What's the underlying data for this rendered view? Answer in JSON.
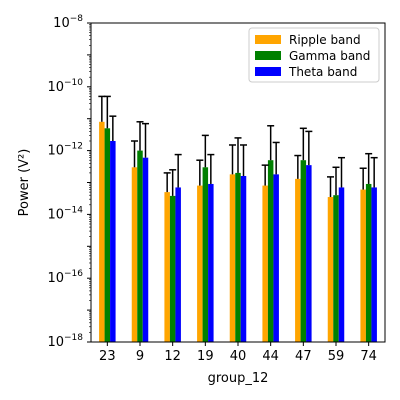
{
  "chart_data": {
    "type": "bar",
    "title": "",
    "xlabel": "group_12",
    "ylabel": "Power (V²)",
    "yscale": "log",
    "ylim": [
      1e-18,
      1e-08
    ],
    "grid": false,
    "legend_position": "top-right",
    "categories": [
      "23",
      "9",
      "12",
      "19",
      "40",
      "44",
      "47",
      "59",
      "74"
    ],
    "series": [
      {
        "name": "Ripple band",
        "color": "#ffa500",
        "values": [
          8e-12,
          3e-13,
          5e-14,
          8e-14,
          1.8e-13,
          8e-14,
          1.3e-13,
          3.5e-14,
          6e-14
        ],
        "error_upper": [
          5e-11,
          2e-12,
          2e-13,
          5e-13,
          1.5e-12,
          3.5e-13,
          7e-13,
          1.5e-13,
          2.8e-13
        ]
      },
      {
        "name": "Gamma band",
        "color": "#008000",
        "values": [
          5e-12,
          1e-12,
          3.8e-14,
          3e-13,
          2e-13,
          5e-13,
          5e-13,
          4e-14,
          9e-14
        ],
        "error_upper": [
          5e-11,
          8e-12,
          2.5e-13,
          3e-12,
          2.5e-12,
          6e-12,
          5e-12,
          3e-13,
          8e-13
        ]
      },
      {
        "name": "Theta band",
        "color": "#0000ff",
        "values": [
          2e-12,
          6e-13,
          7e-14,
          9e-14,
          1.6e-13,
          1.8e-13,
          3.5e-13,
          7e-14,
          7e-14
        ],
        "error_upper": [
          1.2e-11,
          7e-12,
          7.5e-13,
          7.5e-13,
          1.5e-12,
          1.8e-12,
          4e-12,
          6e-13,
          6e-13
        ]
      }
    ],
    "yticks": [
      {
        "base": "10",
        "exp": "−18"
      },
      {
        "base": "10",
        "exp": "−16"
      },
      {
        "base": "10",
        "exp": "−14"
      },
      {
        "base": "10",
        "exp": "−12"
      },
      {
        "base": "10",
        "exp": "−10"
      },
      {
        "base": "10",
        "exp": "−8"
      }
    ]
  }
}
